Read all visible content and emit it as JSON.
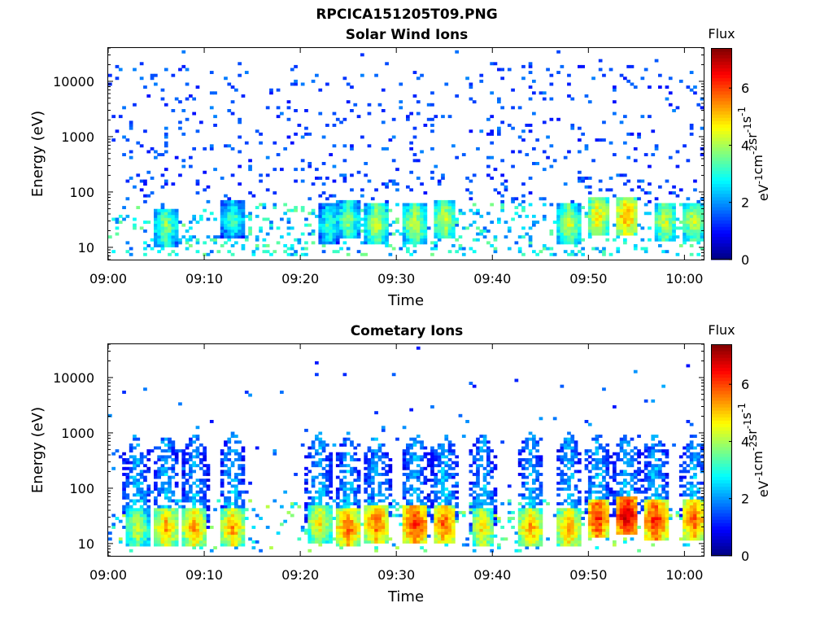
{
  "figure": {
    "title": "RPCICA151205T09.PNG"
  },
  "chart_data": [
    {
      "type": "heatmap",
      "title": "Solar Wind Ions",
      "xlabel": "Time",
      "ylabel": "Energy (eV)",
      "x_ticks": [
        "09:00",
        "09:10",
        "09:20",
        "09:30",
        "09:40",
        "09:50",
        "10:00"
      ],
      "x_range": [
        "09:00",
        "10:02"
      ],
      "y_scale": "log",
      "y_ticks": [
        10,
        100,
        1000,
        10000
      ],
      "y_range": [
        6,
        40000
      ],
      "colorbar": {
        "label": "Flux",
        "unit_label": "eV^-1 cm^-2 sr^-1 s^-1",
        "ticks": [
          0,
          2,
          4,
          6
        ],
        "range": [
          0,
          7.4
        ],
        "colormap": "jet"
      },
      "description_values": {
        "high_flux_bursts": [
          {
            "time": "09:06",
            "energy_eV": 22,
            "flux": 4.0
          },
          {
            "time": "09:13",
            "energy_eV": 30,
            "flux": 3.5
          },
          {
            "time": "09:23",
            "energy_eV": 25,
            "flux": 3.5
          },
          {
            "time": "09:25",
            "energy_eV": 30,
            "flux": 4.0
          },
          {
            "time": "09:28",
            "energy_eV": 25,
            "flux": 4.5
          },
          {
            "time": "09:32",
            "energy_eV": 25,
            "flux": 4.5
          },
          {
            "time": "09:35",
            "energy_eV": 30,
            "flux": 4.5
          },
          {
            "time": "09:48",
            "energy_eV": 25,
            "flux": 4.5
          },
          {
            "time": "09:51",
            "energy_eV": 35,
            "flux": 5.0
          },
          {
            "time": "09:54",
            "energy_eV": 35,
            "flux": 5.5
          },
          {
            "time": "09:58",
            "energy_eV": 28,
            "flux": 4.5
          },
          {
            "time": "10:01",
            "energy_eV": 28,
            "flux": 4.5
          }
        ],
        "background_flux_range": [
          1.0,
          2.5
        ]
      }
    },
    {
      "type": "heatmap",
      "title": "Cometary Ions",
      "xlabel": "Time",
      "ylabel": "Energy (eV)",
      "x_ticks": [
        "09:00",
        "09:10",
        "09:20",
        "09:30",
        "09:40",
        "09:50",
        "10:00"
      ],
      "x_range": [
        "09:00",
        "10:02"
      ],
      "y_scale": "log",
      "y_ticks": [
        10,
        100,
        1000,
        10000
      ],
      "y_range": [
        6,
        40000
      ],
      "colorbar": {
        "label": "Flux",
        "unit_label": "eV^-1 cm^-2 sr^-1 s^-1",
        "ticks": [
          0,
          2,
          4,
          6
        ],
        "range": [
          0,
          7.4
        ],
        "colormap": "jet"
      },
      "description_values": {
        "high_flux_bursts": [
          {
            "time": "09:03",
            "energy_eV": 18,
            "flux": 4.5
          },
          {
            "time": "09:06",
            "energy_eV": 18,
            "flux": 5.5
          },
          {
            "time": "09:09",
            "energy_eV": 18,
            "flux": 5.5
          },
          {
            "time": "09:13",
            "energy_eV": 18,
            "flux": 5.5
          },
          {
            "time": "09:22",
            "energy_eV": 22,
            "flux": 5.0
          },
          {
            "time": "09:25",
            "energy_eV": 18,
            "flux": 6.0
          },
          {
            "time": "09:28",
            "energy_eV": 22,
            "flux": 6.0
          },
          {
            "time": "09:32",
            "energy_eV": 22,
            "flux": 6.5
          },
          {
            "time": "09:35",
            "energy_eV": 22,
            "flux": 6.0
          },
          {
            "time": "09:39",
            "energy_eV": 18,
            "flux": 5.0
          },
          {
            "time": "09:44",
            "energy_eV": 18,
            "flux": 5.5
          },
          {
            "time": "09:48",
            "energy_eV": 18,
            "flux": 5.5
          },
          {
            "time": "09:51",
            "energy_eV": 28,
            "flux": 6.5
          },
          {
            "time": "09:54",
            "energy_eV": 30,
            "flux": 7.0
          },
          {
            "time": "09:57",
            "energy_eV": 25,
            "flux": 6.5
          },
          {
            "time": "10:01",
            "energy_eV": 25,
            "flux": 6.0
          }
        ],
        "plume_max_energy_eV": 800,
        "background_flux_range": [
          1.0,
          3.0
        ]
      }
    }
  ]
}
